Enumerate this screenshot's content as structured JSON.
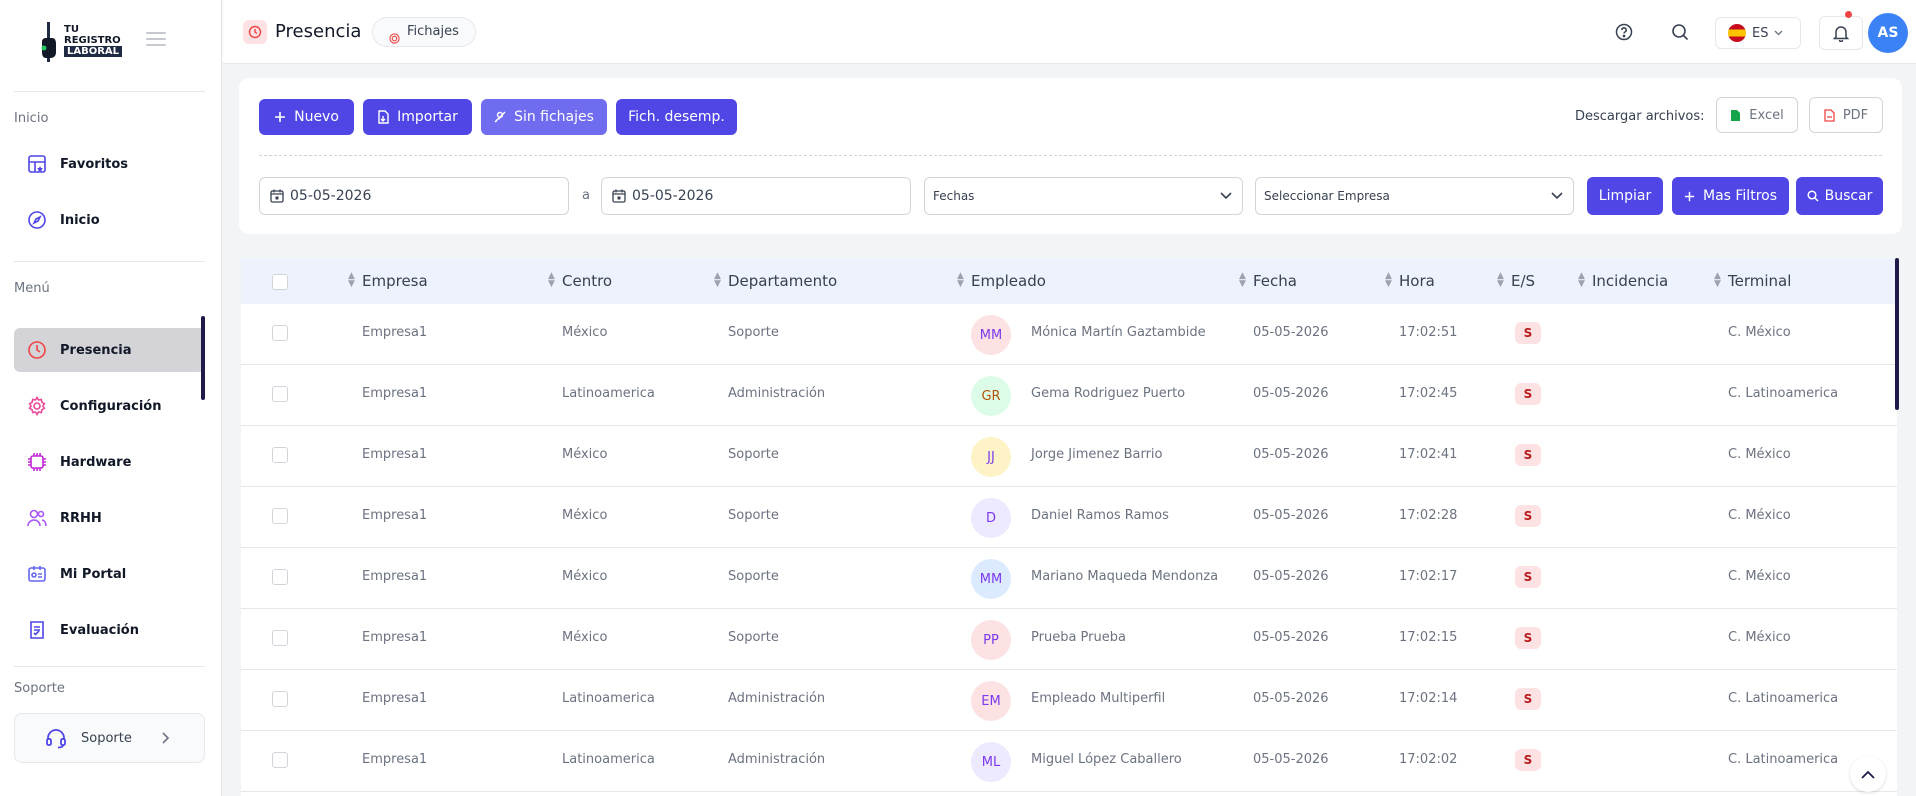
{
  "sidebar": {
    "logo": {
      "line1": "TU",
      "line2": "REGISTRO",
      "line3": "LABORAL"
    },
    "section_inicio": "Inicio",
    "favoritos": "Favoritos",
    "inicio": "Inicio",
    "section_menu": "Menú",
    "items": [
      "Presencia",
      "Configuración",
      "Hardware",
      "RRHH",
      "Mi Portal",
      "Evaluación"
    ],
    "section_soporte": "Soporte",
    "soporte_button": "Soporte"
  },
  "topbar": {
    "title": "Presencia",
    "chip": "Fichajes",
    "language": "ES",
    "avatar": "AS"
  },
  "toolbar": {
    "nuevo": "Nuevo",
    "importar": "Importar",
    "sin_fichajes": "Sin fichajes",
    "fich_desemp": "Fich. desemp.",
    "download_label": "Descargar archivos:",
    "excel": "Excel",
    "pdf": "PDF"
  },
  "filters": {
    "date_from": "05-05-2026",
    "date_sep": "a",
    "date_to": "05-05-2026",
    "fechas": "Fechas",
    "empresa": "Seleccionar Empresa",
    "limpiar": "Limpiar",
    "mas_filtros": "Mas Filtros",
    "buscar": "Buscar"
  },
  "table": {
    "headers": [
      "Empresa",
      "Centro",
      "Departamento",
      "Empleado",
      "Fecha",
      "Hora",
      "E/S",
      "Incidencia",
      "Terminal"
    ],
    "rows": [
      {
        "empresa": "Empresa1",
        "centro": "México",
        "departamento": "Soporte",
        "initials": "MM",
        "empleado": "Mónica Martín Gaztambide",
        "fecha": "05-05-2026",
        "hora": "17:02:51",
        "es": "S",
        "incidencia": "",
        "terminal": "C. México"
      },
      {
        "empresa": "Empresa1",
        "centro": "Latinoamerica",
        "departamento": "Administración",
        "initials": "GR",
        "empleado": "Gema Rodriguez Puerto",
        "fecha": "05-05-2026",
        "hora": "17:02:45",
        "es": "S",
        "incidencia": "",
        "terminal": "C. Latinoamerica"
      },
      {
        "empresa": "Empresa1",
        "centro": "México",
        "departamento": "Soporte",
        "initials": "JJ",
        "empleado": "Jorge Jimenez Barrio",
        "fecha": "05-05-2026",
        "hora": "17:02:41",
        "es": "S",
        "incidencia": "",
        "terminal": "C. México"
      },
      {
        "empresa": "Empresa1",
        "centro": "México",
        "departamento": "Soporte",
        "initials": "D",
        "empleado": "Daniel Ramos Ramos",
        "fecha": "05-05-2026",
        "hora": "17:02:28",
        "es": "S",
        "incidencia": "",
        "terminal": "C. México"
      },
      {
        "empresa": "Empresa1",
        "centro": "México",
        "departamento": "Soporte",
        "initials": "MM",
        "empleado": "Mariano Maqueda Mendonza",
        "fecha": "05-05-2026",
        "hora": "17:02:17",
        "es": "S",
        "incidencia": "",
        "terminal": "C. México"
      },
      {
        "empresa": "Empresa1",
        "centro": "México",
        "departamento": "Soporte",
        "initials": "PP",
        "empleado": "Prueba Prueba",
        "fecha": "05-05-2026",
        "hora": "17:02:15",
        "es": "S",
        "incidencia": "",
        "terminal": "C. México"
      },
      {
        "empresa": "Empresa1",
        "centro": "Latinoamerica",
        "departamento": "Administración",
        "initials": "EM",
        "empleado": "Empleado Multiperfil",
        "fecha": "05-05-2026",
        "hora": "17:02:14",
        "es": "S",
        "incidencia": "",
        "terminal": "C. Latinoamerica"
      },
      {
        "empresa": "Empresa1",
        "centro": "Latinoamerica",
        "departamento": "Administración",
        "initials": "ML",
        "empleado": "Miguel López Caballero",
        "fecha": "05-05-2026",
        "hora": "17:02:02",
        "es": "S",
        "incidencia": "",
        "terminal": "C. Latinoamerica"
      }
    ]
  },
  "colors": {
    "primary": "#4f46e5",
    "primary_light": "#6f6cf0",
    "avatar_top": "#3b82f6",
    "table_header_bg": "#eef2fc",
    "badge_bg": "#fde2e4",
    "avatar_styles": [
      {
        "bg": "#fde2e4",
        "fg": "#7c3aed"
      },
      {
        "bg": "#dcfce7",
        "fg": "#b45309"
      },
      {
        "bg": "#fef3c7",
        "fg": "#7c3aed"
      },
      {
        "bg": "#ede9fe",
        "fg": "#7c3aed"
      },
      {
        "bg": "#dbeafe",
        "fg": "#7c3aed"
      },
      {
        "bg": "#fde2e4",
        "fg": "#7c3aed"
      },
      {
        "bg": "#fde2e4",
        "fg": "#7c3aed"
      },
      {
        "bg": "#ede9fe",
        "fg": "#7c3aed"
      }
    ]
  },
  "icons": {
    "favoritos": "star-grid-icon",
    "inicio": "compass-icon",
    "presencia": "clock-icon",
    "configuracion": "gear-icon",
    "hardware": "chip-icon",
    "rrhh": "users-icon",
    "mi_portal": "id-card-icon",
    "evaluacion": "checklist-icon",
    "soporte": "headset-icon"
  }
}
